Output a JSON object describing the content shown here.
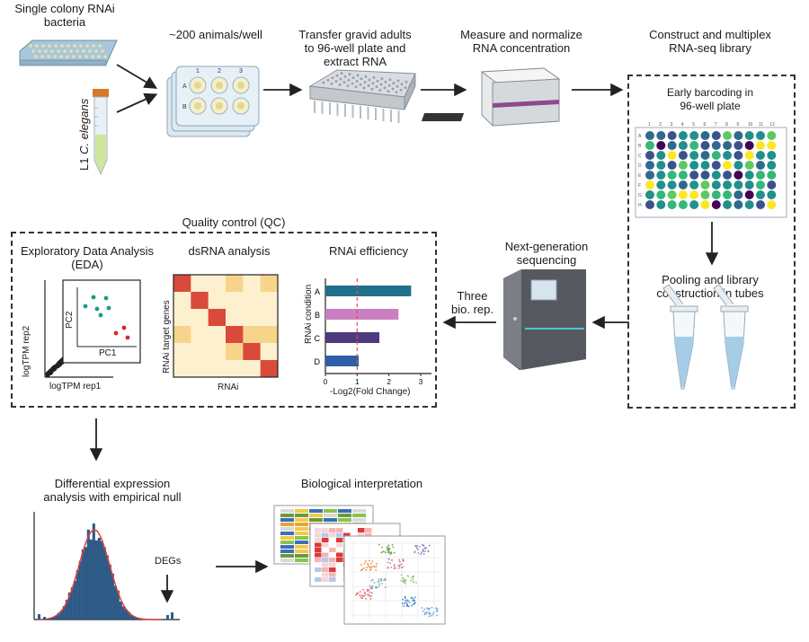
{
  "steps": {
    "bacteria": "Single colony RNAi\nbacteria",
    "l1_prefix": "L1 ",
    "l1_species": "C. elegans",
    "animals": "~200 animals/well",
    "transfer": "Transfer gravid adults\nto 96-well plate and\nextract RNA",
    "measure": "Measure and normalize\nRNA concentration",
    "construct": "Construct and multiplex\nRNA-seq library",
    "barcoding": "Early barcoding in\n96-well plate",
    "pooling": "Pooling and library\nconstruction in tubes",
    "ngs": "Next-generation\nsequencing",
    "three": "Three\nbio. rep.",
    "qc": "Quality control (QC)",
    "eda": "Exploratory Data Analysis\n(EDA)",
    "dsrna": "dsRNA analysis",
    "rnai_eff": "RNAi efficiency",
    "de": "Differential expression\nanalysis with empirical null",
    "bio": "Biological interpretation",
    "degs": "DEGs"
  },
  "well_plate_small": {
    "cols": [
      "1",
      "2",
      "3"
    ],
    "rows": [
      "A",
      "B"
    ]
  },
  "barcode_plate": {
    "cols": [
      "1",
      "2",
      "3",
      "4",
      "5",
      "6",
      "7",
      "8",
      "9",
      "10",
      "11",
      "12"
    ],
    "rows": [
      "A",
      "B",
      "C",
      "D",
      "E",
      "F",
      "G",
      "H"
    ]
  },
  "eda_plot": {
    "xlabel": "logTPM rep1",
    "ylabel": "logTPM rep2",
    "pc_x": "PC1",
    "pc_y": "PC2"
  },
  "dsrna_plot": {
    "xlabel": "RNAi",
    "ylabel": "RNAi target genes"
  },
  "rnai_efficiency": {
    "type": "bar",
    "categories": [
      "A",
      "B",
      "C",
      "D"
    ],
    "values": [
      2.7,
      2.3,
      1.7,
      1.05
    ],
    "colors": [
      "#21708a",
      "#c97fc0",
      "#4e3a7e",
      "#2f5fa8"
    ],
    "xlabel": "-Log2(Fold Change)",
    "ylabel": "RNAi condition",
    "xlim": [
      0,
      3
    ],
    "xticks": [
      "0",
      "1",
      "2",
      "3"
    ],
    "reference_line": 1,
    "reference_color": "#e05050"
  },
  "histogram_colors": {
    "bars": "#2b5f8f",
    "fit": "#e04040"
  },
  "palette": {
    "viridis": [
      "#440154",
      "#3b528b",
      "#21908c",
      "#5ec962",
      "#fde725",
      "#31688e",
      "#35b779"
    ]
  }
}
